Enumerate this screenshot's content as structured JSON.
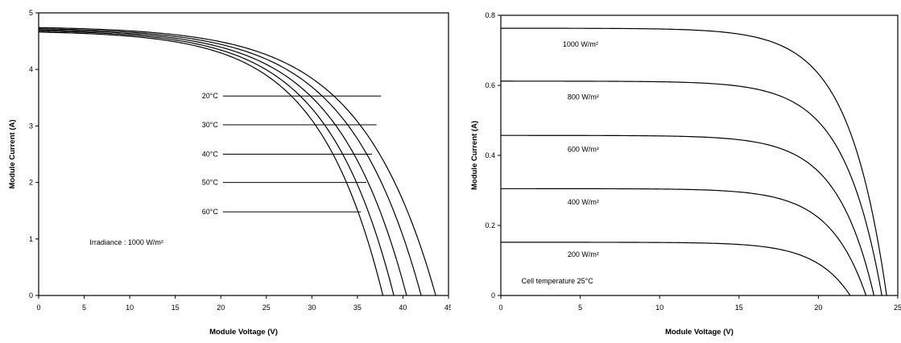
{
  "chart_data": [
    {
      "id": "temperature",
      "type": "line",
      "xlabel": "Module Voltage (V)",
      "ylabel": "Module Current (A)",
      "xlim": [
        0,
        45
      ],
      "ylim": [
        0,
        5
      ],
      "xticks": [
        "0",
        "5",
        "10",
        "15",
        "20",
        "25",
        "30",
        "35",
        "40",
        "45"
      ],
      "yticks": [
        "0",
        "1",
        "2",
        "3",
        "4",
        "5"
      ],
      "grid": false,
      "annotation": "Irradiance : 1000 W/m²",
      "series": [
        {
          "name": "20°C",
          "isc": 4.74,
          "voc": 43.6,
          "knee": 0.19
        },
        {
          "name": "30°C",
          "isc": 4.72,
          "voc": 42.0,
          "knee": 0.19
        },
        {
          "name": "40°C",
          "isc": 4.7,
          "voc": 40.4,
          "knee": 0.19
        },
        {
          "name": "50°C",
          "isc": 4.68,
          "voc": 39.0,
          "knee": 0.19
        },
        {
          "name": "60°C",
          "isc": 4.66,
          "voc": 37.8,
          "knee": 0.19
        }
      ],
      "labels": [
        {
          "text": "20°C",
          "y": 3.53,
          "x_end": 37.6
        },
        {
          "text": "30°C",
          "y": 3.02,
          "x_end": 37.1
        },
        {
          "text": "40°C",
          "y": 2.5,
          "x_end": 36.6
        },
        {
          "text": "50°C",
          "y": 2.0,
          "x_end": 36.0
        },
        {
          "text": "60°C",
          "y": 1.48,
          "x_end": 35.4
        }
      ]
    },
    {
      "id": "irradiance",
      "type": "line",
      "xlabel": "Module Voltage (V)",
      "ylabel": "Module Current (A)",
      "xlim": [
        0,
        25
      ],
      "ylim": [
        0,
        0.8
      ],
      "xticks": [
        "0",
        "5",
        "10",
        "15",
        "20",
        "25"
      ],
      "yticks": [
        "0",
        "0.2",
        "0.4",
        "0.6",
        "0.8"
      ],
      "grid": false,
      "annotation": "Cell temperature 25°C",
      "series": [
        {
          "name": "1000 W/m²",
          "isc": 0.763,
          "voc": 24.3,
          "knee": 0.1
        },
        {
          "name": "800 W/m²",
          "isc": 0.612,
          "voc": 24.0,
          "knee": 0.1
        },
        {
          "name": "600 W/m²",
          "isc": 0.457,
          "voc": 23.5,
          "knee": 0.1
        },
        {
          "name": "400 W/m²",
          "isc": 0.305,
          "voc": 23.0,
          "knee": 0.1
        },
        {
          "name": "200 W/m²",
          "isc": 0.152,
          "voc": 22.0,
          "knee": 0.1
        }
      ],
      "labels": [
        {
          "text": "1000 W/m²",
          "x": 3.9,
          "y": 0.71
        },
        {
          "text": "800 W/m²",
          "x": 4.2,
          "y": 0.56
        },
        {
          "text": "600 W/m²",
          "x": 4.2,
          "y": 0.41
        },
        {
          "text": "400 W/m²",
          "x": 4.2,
          "y": 0.26
        },
        {
          "text": "200 W/m²",
          "x": 4.2,
          "y": 0.11
        }
      ]
    }
  ]
}
